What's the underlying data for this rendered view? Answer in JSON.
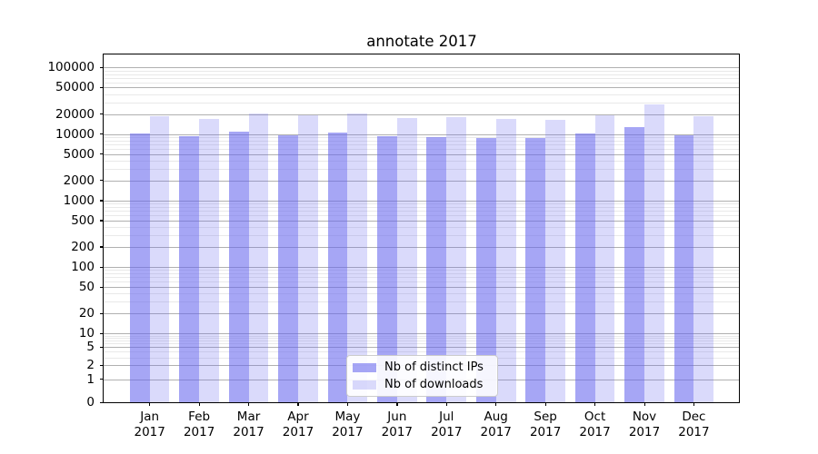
{
  "chart_data": {
    "type": "bar",
    "title": "annotate 2017",
    "categories": [
      "Jan",
      "Feb",
      "Mar",
      "Apr",
      "May",
      "Jun",
      "Jul",
      "Aug",
      "Sep",
      "Oct",
      "Nov",
      "Dec"
    ],
    "year_label": "2017",
    "series": [
      {
        "name": "Nb of distinct IPs",
        "color": "#6666ee",
        "opacity": 0.58,
        "values": [
          10200,
          9300,
          10700,
          9600,
          10400,
          9300,
          8900,
          8600,
          8700,
          10200,
          12900,
          9600
        ]
      },
      {
        "name": "Nb of downloads",
        "color": "#6666ee",
        "opacity": 0.24,
        "values": [
          18800,
          16900,
          20200,
          18900,
          20200,
          17600,
          18200,
          16700,
          16600,
          19000,
          27600,
          18600
        ]
      }
    ],
    "yscale": "symlog",
    "ylim": [
      0,
      157000
    ],
    "yticks": [
      0,
      1,
      2,
      5,
      10,
      20,
      50,
      100,
      200,
      500,
      1000,
      2000,
      5000,
      10000,
      20000,
      50000,
      100000
    ],
    "grid": true,
    "legend_position": "lower center"
  },
  "colors": {
    "bar_base": "#6666ee",
    "grid_major": "#b0b0b0",
    "grid_minor": "#e9e9e9",
    "axis": "#000000",
    "background": "#ffffff"
  }
}
